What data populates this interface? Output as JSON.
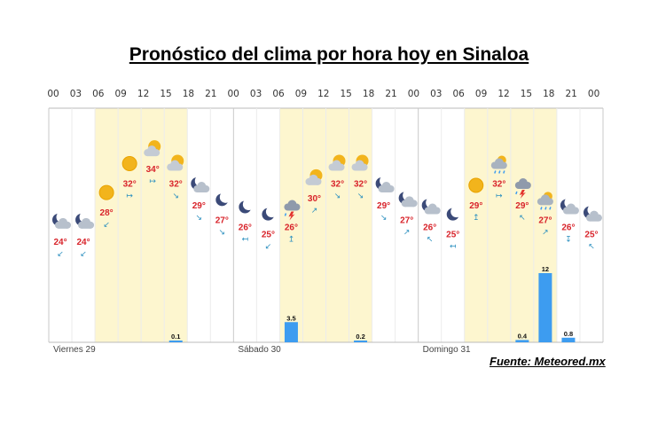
{
  "title": "Pronóstico del clima por hora hoy en Sinaloa",
  "source": "Fuente: Meteored.mx",
  "colors": {
    "temp": "#d8232a",
    "rain_bar": "#3d9cf0",
    "day_band": "#fdf6cf",
    "wind": "#2a8fbf"
  },
  "chart_data": {
    "type": "bar",
    "hours": [
      "00",
      "03",
      "06",
      "09",
      "12",
      "15",
      "18",
      "21",
      "00",
      "03",
      "06",
      "09",
      "12",
      "15",
      "18",
      "21",
      "00",
      "03",
      "06",
      "09",
      "12",
      "15",
      "18",
      "21",
      "00"
    ],
    "days": [
      "Viernes 29",
      "Sábado 30",
      "Domingo 31"
    ],
    "temperatures": [
      24,
      24,
      28,
      32,
      34,
      32,
      29,
      27,
      26,
      25,
      26,
      30,
      32,
      32,
      29,
      27,
      26,
      25,
      29,
      32,
      29,
      27,
      26,
      25
    ],
    "temperature_labels": [
      "24°",
      "24°",
      "28°",
      "32°",
      "34°",
      "32°",
      "29°",
      "27°",
      "26°",
      "25°",
      "26°",
      "30°",
      "32°",
      "32°",
      "29°",
      "27°",
      "26°",
      "25°",
      "29°",
      "32°",
      "29°",
      "27°",
      "26°",
      "25°"
    ],
    "icons": [
      "moon-cloud-icon",
      "moon-cloud-icon",
      "sun-icon",
      "sun-icon",
      "sun-cloud-icon",
      "sun-cloud-icon",
      "moon-cloud-icon",
      "moon-icon",
      "moon-icon",
      "moon-icon",
      "storm-icon",
      "sun-cloud-icon",
      "sun-cloud-icon",
      "sun-cloud-icon",
      "moon-cloud-icon",
      "moon-cloud-icon",
      "moon-cloud-icon",
      "moon-icon",
      "sun-icon",
      "rain-cloud-icon",
      "storm-icon",
      "rain-cloud-icon",
      "moon-cloud-icon",
      "moon-cloud-icon"
    ],
    "wind_direction_glyphs": [
      "↙",
      "↙",
      "↙",
      "↦",
      "↦",
      "↘",
      "↘",
      "↘",
      "↤",
      "↙",
      "↥",
      "↗",
      "↘",
      "↘",
      "↘",
      "↗",
      "↖",
      "↤",
      "↥",
      "↦",
      "↖",
      "↗",
      "↧",
      "↖"
    ],
    "precipitation": [
      null,
      null,
      null,
      null,
      null,
      0.1,
      null,
      null,
      null,
      null,
      3.5,
      null,
      null,
      0.2,
      null,
      null,
      null,
      null,
      null,
      null,
      0.4,
      12,
      0.8,
      null
    ],
    "precipitation_labels": [
      "",
      "",
      "",
      "",
      "",
      "0.1",
      "",
      "",
      "",
      "",
      "3.5",
      "",
      "",
      "0.2",
      "",
      "",
      "",
      "",
      "",
      "",
      "0.4",
      "12",
      "0.8",
      ""
    ],
    "precip_max": 12
  }
}
